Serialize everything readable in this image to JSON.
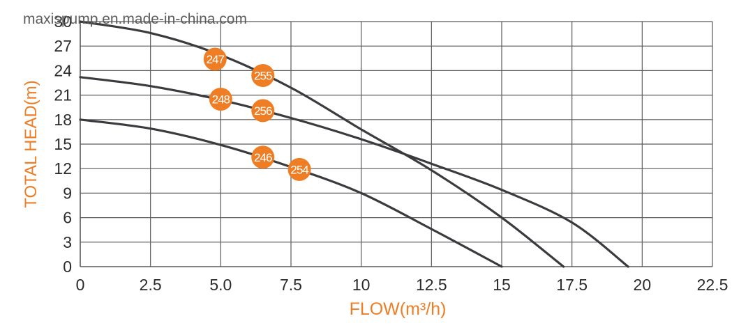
{
  "watermark": "maxispump.en.made-in-china.com",
  "colors": {
    "accent": "#ee7d24",
    "curve": "#3b3b3f",
    "grid": "#5a5a5a",
    "tick_text": "#2b2b2b",
    "badge_text": "#ffffff"
  },
  "chart_data": {
    "type": "line",
    "title": "",
    "xlabel": "FLOW(m³/h)",
    "ylabel": "TOTAL HEAD(m)",
    "xlim": [
      0,
      22.5
    ],
    "ylim": [
      0,
      30
    ],
    "x_ticks": [
      "0",
      "2.5",
      "5.0",
      "7.5",
      "10",
      "12.5",
      "15",
      "17.5",
      "20",
      "22.5"
    ],
    "y_ticks": [
      "0",
      "3",
      "6",
      "9",
      "12",
      "15",
      "18",
      "21",
      "24",
      "27",
      "30"
    ],
    "grid": true,
    "series": [
      {
        "name": "247 / 255",
        "x": [
          0,
          2.5,
          5,
          7.5,
          10,
          12.5,
          15,
          17.2
        ],
        "y": [
          30,
          28.6,
          25.9,
          21.9,
          16.8,
          11.8,
          6.0,
          0
        ]
      },
      {
        "name": "248 / 256",
        "x": [
          0,
          2.5,
          5,
          7.5,
          10,
          12.5,
          15,
          17.5,
          19.5
        ],
        "y": [
          23.2,
          22.1,
          20.4,
          18.2,
          15.6,
          12.6,
          9.4,
          5.4,
          0
        ]
      },
      {
        "name": "246 / 254",
        "x": [
          0,
          2.5,
          5,
          7.5,
          10,
          12.5,
          15
        ],
        "y": [
          18,
          16.9,
          14.9,
          12.2,
          9.0,
          4.6,
          0
        ]
      }
    ],
    "badges": [
      {
        "label": "247",
        "x": 4.8,
        "y": 25.4
      },
      {
        "label": "255",
        "x": 6.5,
        "y": 23.4
      },
      {
        "label": "248",
        "x": 5.0,
        "y": 20.5
      },
      {
        "label": "256",
        "x": 6.5,
        "y": 19.1
      },
      {
        "label": "246",
        "x": 6.5,
        "y": 13.4
      },
      {
        "label": "254",
        "x": 7.8,
        "y": 11.9
      }
    ]
  }
}
